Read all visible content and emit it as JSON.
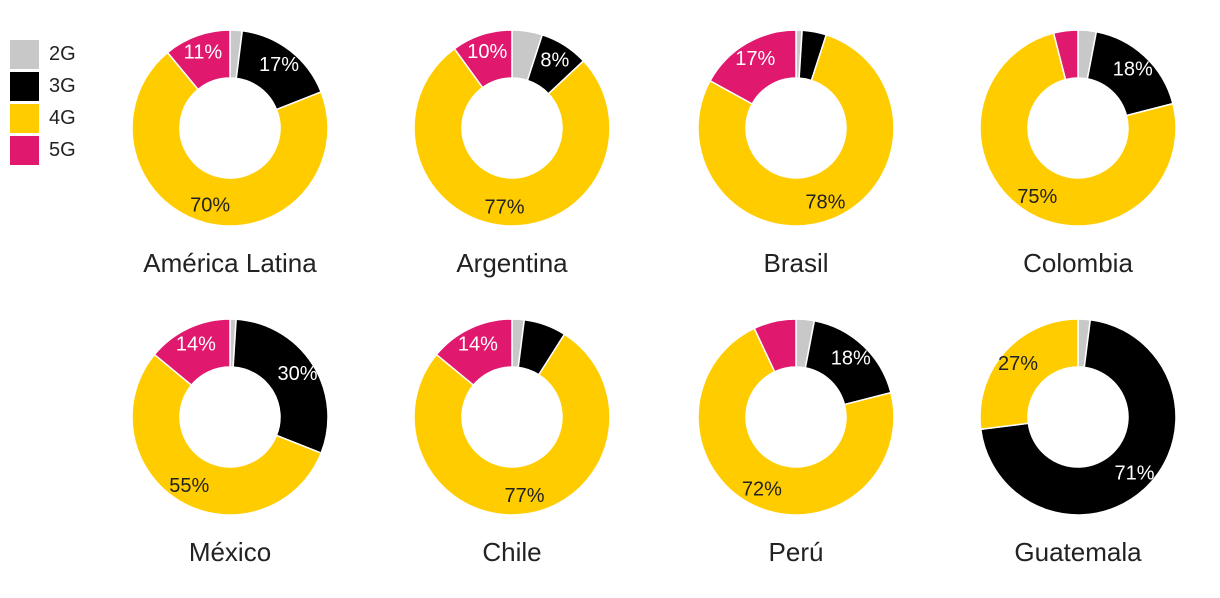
{
  "colors": {
    "2G": "#c8c8c8",
    "3G": "#000000",
    "4G": "#ffcc00",
    "5G": "#e0196e"
  },
  "legend": [
    {
      "key": "2G",
      "label": "2G"
    },
    {
      "key": "3G",
      "label": "3G"
    },
    {
      "key": "4G",
      "label": "4G"
    },
    {
      "key": "5G",
      "label": "5G"
    }
  ],
  "chart_data": {
    "type": "pie",
    "series_order": [
      "2G",
      "3G",
      "4G",
      "5G"
    ],
    "charts": [
      {
        "name": "América Latina",
        "values": {
          "2G": 2,
          "3G": 17,
          "4G": 70,
          "5G": 11
        },
        "labels": {
          "3G": "17%",
          "4G": "70%",
          "5G": "11%"
        }
      },
      {
        "name": "Argentina",
        "values": {
          "2G": 5,
          "3G": 8,
          "4G": 77,
          "5G": 10
        },
        "labels": {
          "3G": "8%",
          "4G": "77%",
          "5G": "10%"
        }
      },
      {
        "name": "Brasil",
        "values": {
          "2G": 1,
          "3G": 4,
          "4G": 78,
          "5G": 17
        },
        "labels": {
          "4G": "78%",
          "5G": "17%"
        }
      },
      {
        "name": "Colombia",
        "values": {
          "2G": 3,
          "3G": 18,
          "4G": 75,
          "5G": 4
        },
        "labels": {
          "3G": "18%",
          "4G": "75%"
        }
      },
      {
        "name": "México",
        "values": {
          "2G": 1,
          "3G": 30,
          "4G": 55,
          "5G": 14
        },
        "labels": {
          "3G": "30%",
          "4G": "55%",
          "5G": "14%"
        }
      },
      {
        "name": "Chile",
        "values": {
          "2G": 2,
          "3G": 7,
          "4G": 77,
          "5G": 14
        },
        "labels": {
          "4G": "77%",
          "5G": "14%"
        }
      },
      {
        "name": "Perú",
        "values": {
          "2G": 3,
          "3G": 18,
          "4G": 72,
          "5G": 7
        },
        "labels": {
          "3G": "18%",
          "4G": "72%"
        }
      },
      {
        "name": "Guatemala",
        "values": {
          "2G": 2,
          "3G": 71,
          "4G": 27,
          "5G": 0
        },
        "labels": {
          "3G": "71%",
          "4G": "27%"
        }
      }
    ]
  }
}
